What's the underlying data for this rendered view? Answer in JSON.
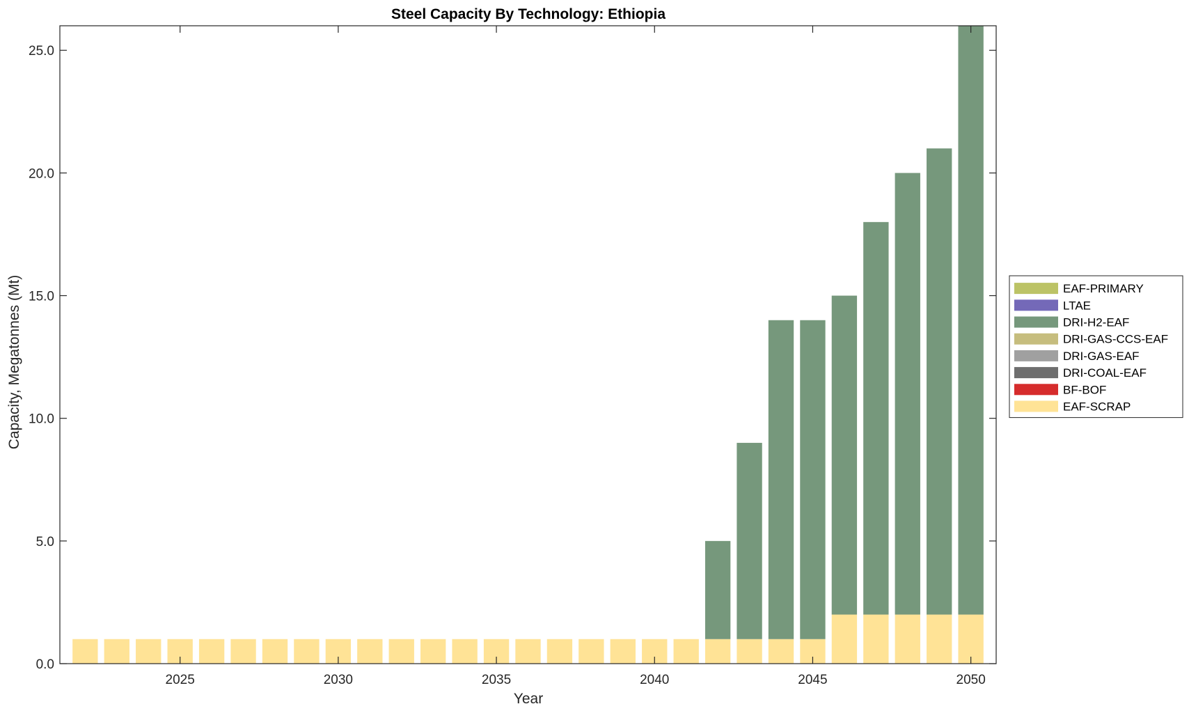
{
  "chart_data": {
    "type": "bar",
    "stacked": true,
    "title": "Steel Capacity By Technology: Ethiopia",
    "xlabel": "Year",
    "ylabel": "Capacity, Megatonnes (Mt)",
    "xlim": [
      2021.2,
      2050.8
    ],
    "ylim": [
      0,
      26
    ],
    "x_ticks": [
      2025,
      2030,
      2035,
      2040,
      2045,
      2050
    ],
    "y_ticks": [
      0.0,
      5.0,
      10.0,
      15.0,
      20.0,
      25.0
    ],
    "y_tick_labels": [
      "0.0",
      "5.0",
      "10.0",
      "15.0",
      "20.0",
      "25.0"
    ],
    "legend_position": "outside-right",
    "categories": [
      2022,
      2023,
      2024,
      2025,
      2026,
      2027,
      2028,
      2029,
      2030,
      2031,
      2032,
      2033,
      2034,
      2035,
      2036,
      2037,
      2038,
      2039,
      2040,
      2041,
      2042,
      2043,
      2044,
      2045,
      2046,
      2047,
      2048,
      2049,
      2050
    ],
    "series": [
      {
        "name": "EAF-SCRAP",
        "color": "#FFE396",
        "values": [
          1,
          1,
          1,
          1,
          1,
          1,
          1,
          1,
          1,
          1,
          1,
          1,
          1,
          1,
          1,
          1,
          1,
          1,
          1,
          1,
          1,
          1,
          1,
          1,
          2,
          2,
          2,
          2,
          2
        ]
      },
      {
        "name": "BF-BOF",
        "color": "#D62C2C",
        "values": [
          0,
          0,
          0,
          0,
          0,
          0,
          0,
          0,
          0,
          0,
          0,
          0,
          0,
          0,
          0,
          0,
          0,
          0,
          0,
          0,
          0,
          0,
          0,
          0,
          0,
          0,
          0,
          0,
          0
        ]
      },
      {
        "name": "DRI-COAL-EAF",
        "color": "#6E6E6E",
        "values": [
          0,
          0,
          0,
          0,
          0,
          0,
          0,
          0,
          0,
          0,
          0,
          0,
          0,
          0,
          0,
          0,
          0,
          0,
          0,
          0,
          0,
          0,
          0,
          0,
          0,
          0,
          0,
          0,
          0
        ]
      },
      {
        "name": "DRI-GAS-EAF",
        "color": "#A0A0A0",
        "values": [
          0,
          0,
          0,
          0,
          0,
          0,
          0,
          0,
          0,
          0,
          0,
          0,
          0,
          0,
          0,
          0,
          0,
          0,
          0,
          0,
          0,
          0,
          0,
          0,
          0,
          0,
          0,
          0,
          0
        ]
      },
      {
        "name": "DRI-GAS-CCS-EAF",
        "color": "#C6BD7E",
        "values": [
          0,
          0,
          0,
          0,
          0,
          0,
          0,
          0,
          0,
          0,
          0,
          0,
          0,
          0,
          0,
          0,
          0,
          0,
          0,
          0,
          0,
          0,
          0,
          0,
          0,
          0,
          0,
          0,
          0
        ]
      },
      {
        "name": "DRI-H2-EAF",
        "color": "#76987C",
        "values": [
          0,
          0,
          0,
          0,
          0,
          0,
          0,
          0,
          0,
          0,
          0,
          0,
          0,
          0,
          0,
          0,
          0,
          0,
          0,
          0,
          4,
          8,
          13,
          13,
          13,
          16,
          18,
          19,
          24
        ]
      },
      {
        "name": "LTAE",
        "color": "#7469B8",
        "values": [
          0,
          0,
          0,
          0,
          0,
          0,
          0,
          0,
          0,
          0,
          0,
          0,
          0,
          0,
          0,
          0,
          0,
          0,
          0,
          0,
          0,
          0,
          0,
          0,
          0,
          0,
          0,
          0,
          0
        ]
      },
      {
        "name": "EAF-PRIMARY",
        "color": "#BCC366",
        "values": [
          0,
          0,
          0,
          0,
          0,
          0,
          0,
          0,
          0,
          0,
          0,
          0,
          0,
          0,
          0,
          0,
          0,
          0,
          0,
          0,
          0,
          0,
          0,
          0,
          0,
          0,
          0,
          0,
          0
        ]
      }
    ],
    "legend_order": [
      "EAF-PRIMARY",
      "LTAE",
      "DRI-H2-EAF",
      "DRI-GAS-CCS-EAF",
      "DRI-GAS-EAF",
      "DRI-COAL-EAF",
      "BF-BOF",
      "EAF-SCRAP"
    ]
  }
}
